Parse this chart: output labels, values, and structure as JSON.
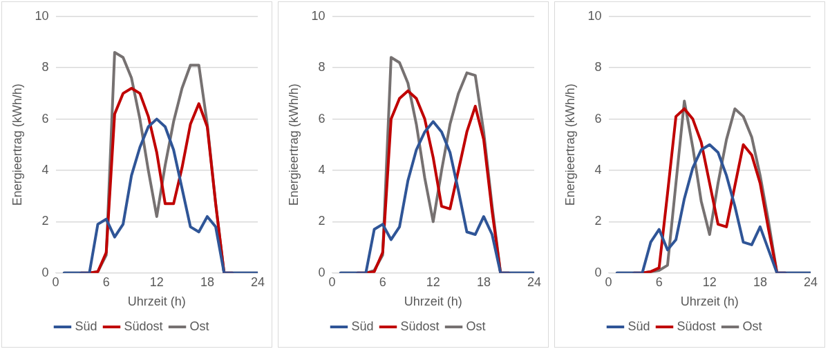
{
  "chart_data": [
    {
      "type": "line",
      "xlabel": "Uhrzeit (h)",
      "ylabel": "Energieertrag (kWh/h)",
      "x": [
        1,
        2,
        3,
        4,
        5,
        6,
        7,
        8,
        9,
        10,
        11,
        12,
        13,
        14,
        15,
        16,
        17,
        18,
        19,
        20,
        21,
        22,
        23,
        24
      ],
      "xlim": [
        0,
        24
      ],
      "xticks": [
        0,
        6,
        12,
        18,
        24
      ],
      "ylim": [
        0,
        10
      ],
      "yticks": [
        0,
        2,
        4,
        6,
        8,
        10
      ],
      "grid": "y",
      "legend": "bottom",
      "series": [
        {
          "name": "Süd",
          "color": "#2f5597",
          "values": [
            0,
            0,
            0,
            0,
            1.9,
            2.1,
            1.4,
            1.9,
            3.8,
            4.9,
            5.7,
            6.0,
            5.7,
            4.8,
            3.3,
            1.8,
            1.6,
            2.2,
            1.8,
            0,
            0,
            0,
            0,
            0
          ]
        },
        {
          "name": "Südost",
          "color": "#c00000",
          "values": [
            null,
            null,
            0,
            0,
            0.05,
            0.8,
            6.2,
            7.0,
            7.2,
            7.0,
            6.1,
            4.7,
            2.7,
            2.7,
            4.1,
            5.8,
            6.6,
            5.7,
            2.7,
            0,
            0,
            null,
            null,
            null
          ]
        },
        {
          "name": "Ost",
          "color": "#767171",
          "values": [
            0,
            0,
            0,
            0,
            0.05,
            0.7,
            8.6,
            8.4,
            7.6,
            6.0,
            4.0,
            2.2,
            4.2,
            5.9,
            7.2,
            8.1,
            8.1,
            5.8,
            2.7,
            0,
            0,
            0,
            0,
            0
          ]
        }
      ]
    },
    {
      "type": "line",
      "xlabel": "Uhrzeit (h)",
      "ylabel": "Energieertrag (kWh/h)",
      "x": [
        1,
        2,
        3,
        4,
        5,
        6,
        7,
        8,
        9,
        10,
        11,
        12,
        13,
        14,
        15,
        16,
        17,
        18,
        19,
        20,
        21,
        22,
        23,
        24
      ],
      "xlim": [
        0,
        24
      ],
      "xticks": [
        0,
        6,
        12,
        18,
        24
      ],
      "ylim": [
        0,
        10
      ],
      "yticks": [
        0,
        2,
        4,
        6,
        8,
        10
      ],
      "grid": "y",
      "legend": "bottom",
      "series": [
        {
          "name": "Süd",
          "color": "#2f5597",
          "values": [
            0,
            0,
            0,
            0,
            1.7,
            1.9,
            1.3,
            1.8,
            3.6,
            4.8,
            5.5,
            5.9,
            5.5,
            4.7,
            3.2,
            1.6,
            1.5,
            2.2,
            1.5,
            0,
            0,
            0,
            0,
            0
          ]
        },
        {
          "name": "Südost",
          "color": "#c00000",
          "values": [
            null,
            null,
            0,
            0,
            0.05,
            0.8,
            6.0,
            6.8,
            7.1,
            6.8,
            6.0,
            4.5,
            2.6,
            2.5,
            4.0,
            5.5,
            6.5,
            5.2,
            2.4,
            0,
            0,
            null,
            null,
            null
          ]
        },
        {
          "name": "Ost",
          "color": "#767171",
          "values": [
            0,
            0,
            0,
            0,
            0.1,
            0.7,
            8.4,
            8.2,
            7.4,
            5.8,
            3.7,
            2.0,
            4.0,
            5.8,
            7.0,
            7.8,
            7.7,
            5.5,
            2.6,
            0,
            0,
            0,
            0,
            0
          ]
        }
      ]
    },
    {
      "type": "line",
      "xlabel": "Uhrzeit (h)",
      "ylabel": "Energieertrag (kWh/h)",
      "x": [
        1,
        2,
        3,
        4,
        5,
        6,
        7,
        8,
        9,
        10,
        11,
        12,
        13,
        14,
        15,
        16,
        17,
        18,
        19,
        20,
        21,
        22,
        23,
        24
      ],
      "xlim": [
        0,
        24
      ],
      "xticks": [
        0,
        6,
        12,
        18,
        24
      ],
      "ylim": [
        0,
        10
      ],
      "yticks": [
        0,
        2,
        4,
        6,
        8,
        10
      ],
      "grid": "y",
      "legend": "bottom",
      "series": [
        {
          "name": "Süd",
          "color": "#2f5597",
          "values": [
            0,
            0,
            0,
            0,
            1.2,
            1.7,
            0.9,
            1.3,
            2.9,
            4.1,
            4.8,
            5.0,
            4.7,
            3.8,
            2.6,
            1.2,
            1.1,
            1.8,
            0.9,
            0,
            0,
            0,
            0,
            0
          ]
        },
        {
          "name": "Südost",
          "color": "#c00000",
          "values": [
            null,
            null,
            0,
            0,
            0.05,
            0.2,
            3.1,
            6.1,
            6.4,
            6.0,
            5.1,
            3.5,
            1.9,
            1.8,
            3.4,
            5.0,
            4.6,
            3.5,
            1.7,
            0,
            0,
            null,
            null,
            null
          ]
        },
        {
          "name": "Ost",
          "color": "#767171",
          "values": [
            0,
            0,
            0,
            0,
            0.05,
            0.1,
            0.3,
            3.5,
            6.7,
            4.9,
            2.8,
            1.5,
            3.5,
            5.2,
            6.4,
            6.1,
            5.3,
            3.8,
            2.0,
            0,
            0,
            0,
            0,
            0
          ]
        }
      ]
    }
  ]
}
